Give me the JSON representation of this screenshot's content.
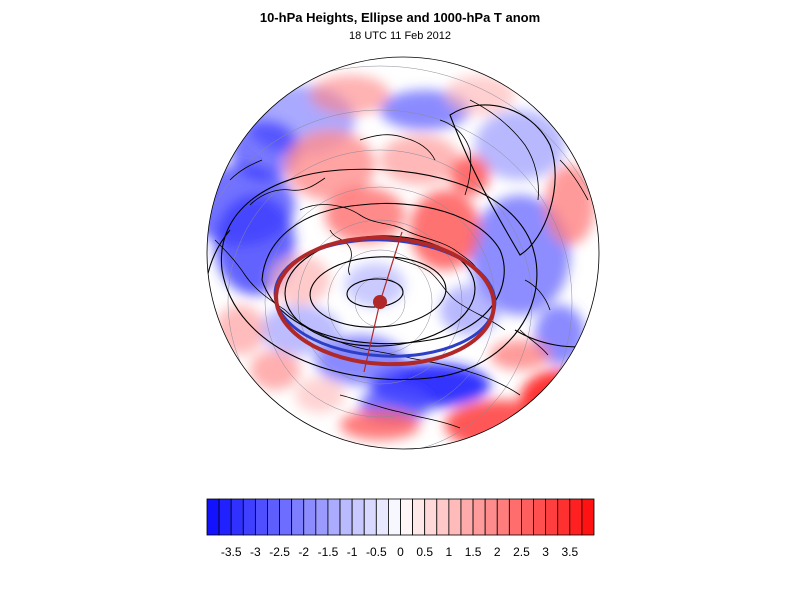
{
  "title": "10-hPa Heights, Ellipse and 1000-hPa T anom",
  "subtitle": "18 UTC 11 Feb 2012",
  "colors": {
    "negative_max": "#1010ff",
    "positive_max": "#ff1010",
    "neutral": "#ffffff",
    "ellipse_outer": "#b02828",
    "ellipse_inner": "#2d3fc4",
    "contour": "#000000",
    "grid": "#8a8a9a"
  },
  "colorbar": {
    "tick_labels": [
      "-3.5",
      "-3",
      "-2.5",
      "-2",
      "-1.5",
      "-1",
      "-0.5",
      "0",
      "0.5",
      "1",
      "1.5",
      "2",
      "2.5",
      "3",
      "3.5"
    ],
    "levels": [
      -4,
      -3.75,
      -3.5,
      -3.25,
      -3,
      -2.75,
      -2.5,
      -2.25,
      -2,
      -1.75,
      -1.5,
      -1.25,
      -1,
      -0.75,
      -0.5,
      -0.25,
      0,
      0.25,
      0.5,
      0.75,
      1,
      1.25,
      1.5,
      1.75,
      2,
      2.25,
      2.5,
      2.75,
      3,
      3.25,
      3.5,
      3.75,
      4
    ]
  }
}
